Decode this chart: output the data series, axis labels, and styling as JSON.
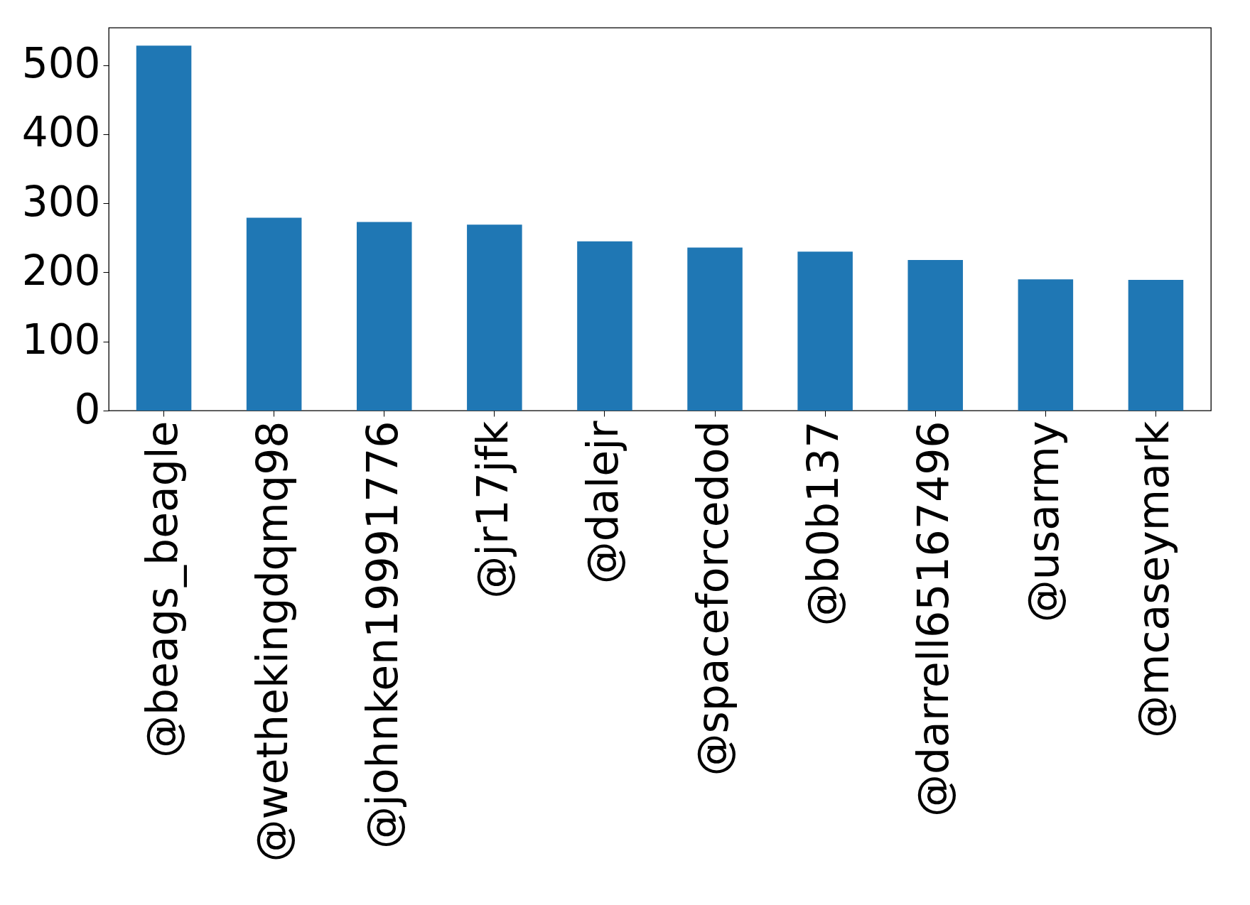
{
  "chart_data": {
    "type": "bar",
    "categories": [
      "@beags_beagle",
      "@wethekingdqmq98",
      "@johnken19991776",
      "@jr17jfk",
      "@dalejr",
      "@spaceforcedod",
      "@b0b137",
      "@darrell65167496",
      "@usarmy",
      "@mcaseymark"
    ],
    "values": [
      528,
      279,
      273,
      269,
      245,
      236,
      230,
      218,
      190,
      189
    ],
    "color": "#1f77b4",
    "ylim": [
      0,
      554
    ],
    "yticks": [
      0,
      100,
      200,
      300,
      400,
      500
    ],
    "grid": false
  }
}
